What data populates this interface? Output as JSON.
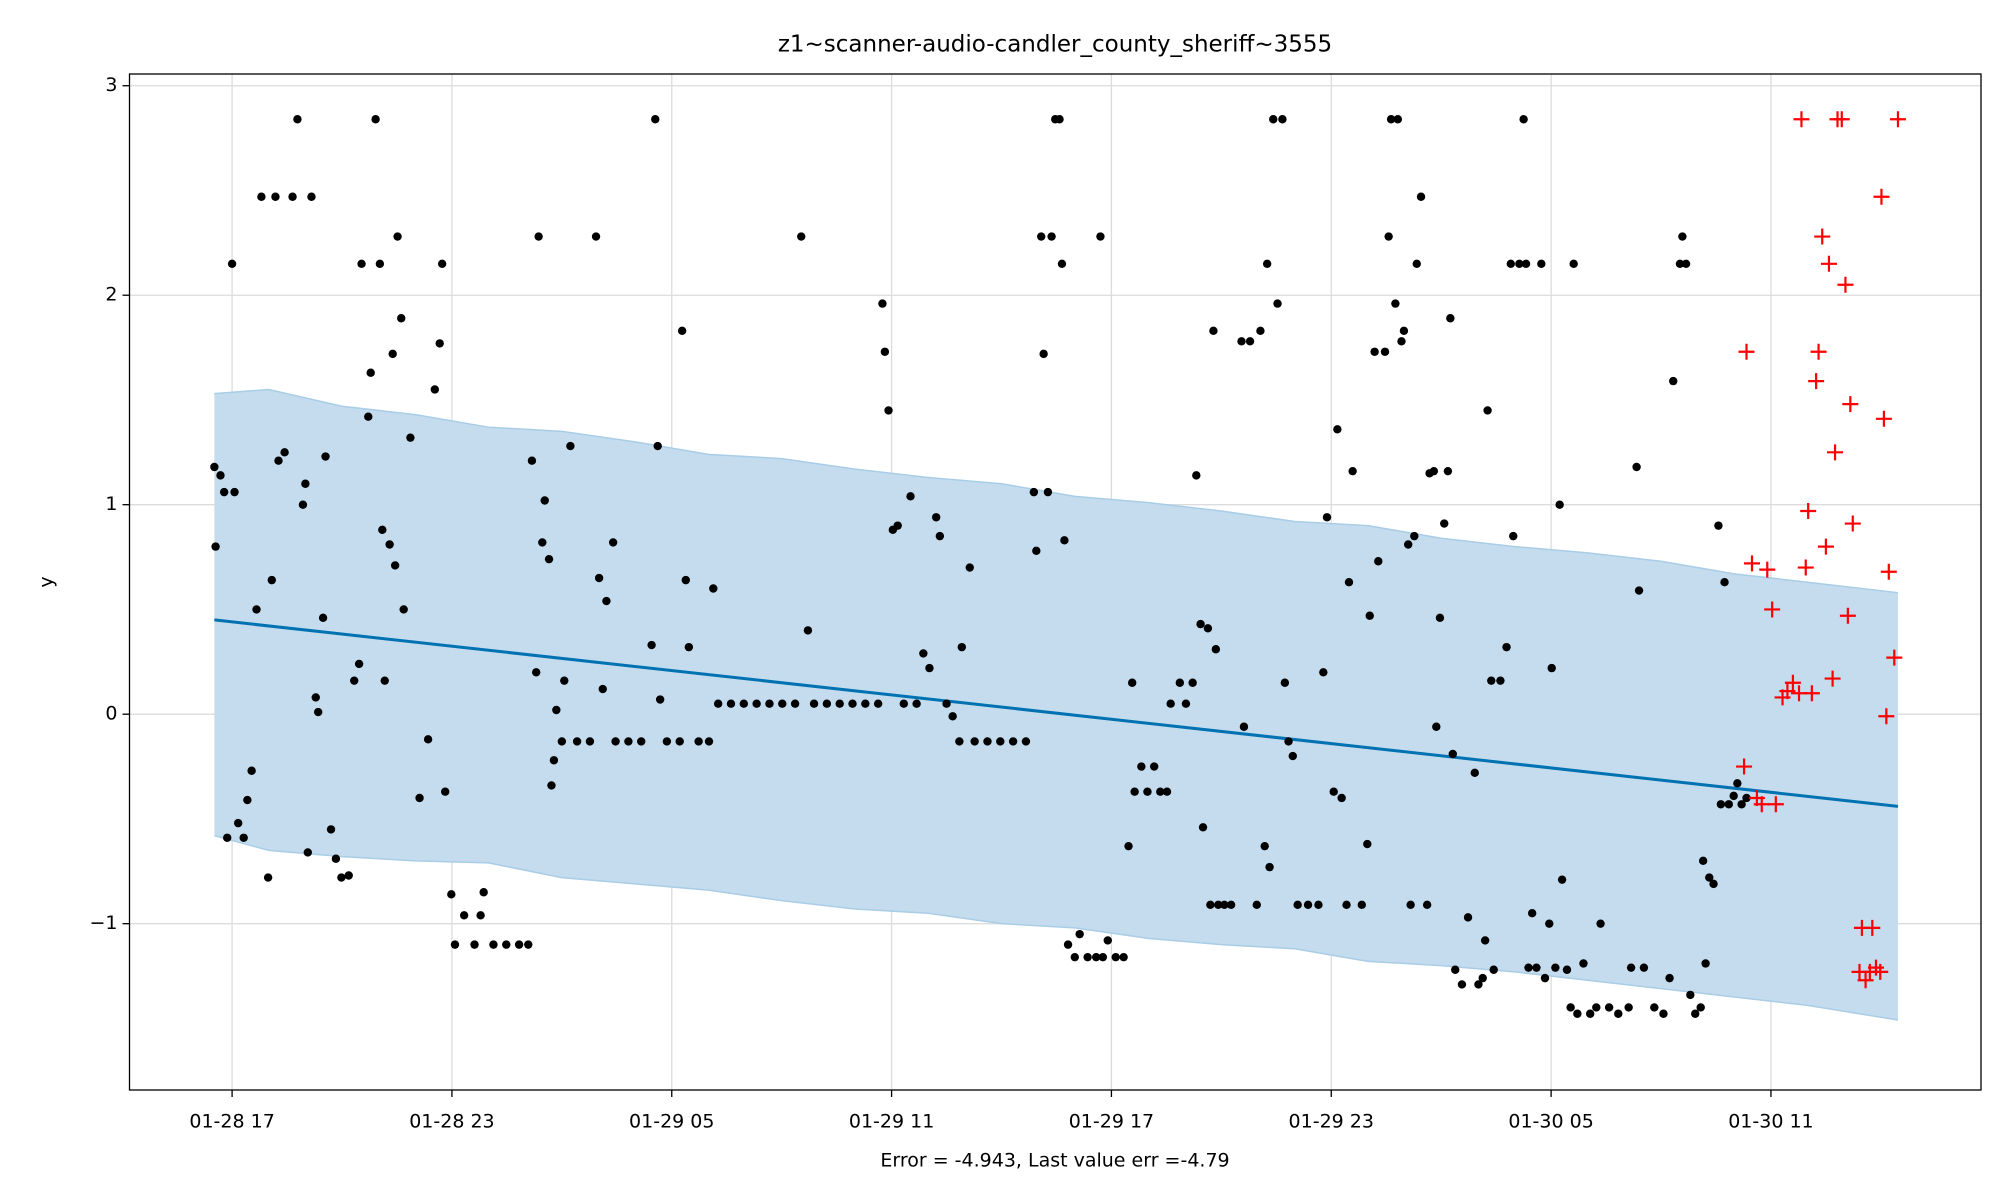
{
  "chart_data": {
    "type": "scatter",
    "title": "z1~scanner-audio-candler_county_sheriff~3555",
    "ylabel": "y",
    "xlabel": "Error = -4.943, Last value err =-4.79",
    "xlim": [
      "01-28 14:12",
      "01-30 16:44"
    ],
    "xticks": [
      "01-28 17",
      "01-28 23",
      "01-29 05",
      "01-29 11",
      "01-29 17",
      "01-29 23",
      "01-30 05",
      "01-30 11"
    ],
    "ylim": [
      -1.794,
      3.056
    ],
    "yticks": [
      {
        "value": -1,
        "label": "−1"
      },
      0,
      1,
      2,
      3
    ],
    "grid": true,
    "series": [
      {
        "type": "band",
        "color": "#c4dcee",
        "edge_color": "#a9cde6",
        "x": [
          "01-28 16:31",
          "01-28 18:00",
          "01-28 20:00",
          "01-28 22:00",
          "01-29 00:00",
          "01-29 02:00",
          "01-29 04:00",
          "01-29 06:00",
          "01-29 08:00",
          "01-29 10:00",
          "01-29 12:00",
          "01-29 14:00",
          "01-29 16:00",
          "01-29 18:00",
          "01-29 20:00",
          "01-29 22:00",
          "01-30 00:00",
          "01-30 02:00",
          "01-30 04:00",
          "01-30 06:00",
          "01-30 08:00",
          "01-30 10:00",
          "01-30 12:00",
          "01-30 14:28"
        ],
        "upper": [
          1.53,
          1.55,
          1.47,
          1.43,
          1.37,
          1.35,
          1.3,
          1.24,
          1.22,
          1.17,
          1.13,
          1.1,
          1.04,
          1.01,
          0.97,
          0.92,
          0.9,
          0.84,
          0.8,
          0.77,
          0.73,
          0.67,
          0.63,
          0.58
        ],
        "lower": [
          -0.58,
          -0.65,
          -0.68,
          -0.7,
          -0.71,
          -0.78,
          -0.81,
          -0.84,
          -0.89,
          -0.93,
          -0.95,
          -1.0,
          -1.02,
          -1.07,
          -1.1,
          -1.12,
          -1.18,
          -1.2,
          -1.23,
          -1.27,
          -1.31,
          -1.35,
          -1.39,
          -1.46
        ]
      },
      {
        "type": "line",
        "color": "#0072b2",
        "x": [
          "01-28 16:31",
          "01-30 14:28"
        ],
        "values": [
          0.45,
          -0.44
        ]
      },
      {
        "type": "scatter",
        "marker": "dot",
        "color": "#000000",
        "x": [
          "01-28 16:31",
          "01-28 16:33",
          "01-28 16:41",
          "01-28 16:47",
          "01-28 16:52",
          "01-28 17:00",
          "01-28 17:04",
          "01-28 17:10",
          "01-28 17:19",
          "01-28 17:25",
          "01-28 17:32",
          "01-28 17:40",
          "01-28 17:48",
          "01-28 17:59",
          "01-28 18:05",
          "01-28 18:11",
          "01-28 18:16",
          "01-28 18:26",
          "01-28 18:39",
          "01-28 18:47",
          "01-28 18:56",
          "01-28 19:00",
          "01-28 19:04",
          "01-28 19:10",
          "01-28 19:17",
          "01-28 19:21",
          "01-28 19:29",
          "01-28 19:33",
          "01-28 19:42",
          "01-28 19:50",
          "01-28 19:59",
          "01-28 20:11",
          "01-28 20:20",
          "01-28 20:28",
          "01-28 20:32",
          "01-28 20:43",
          "01-28 20:47",
          "01-28 20:55",
          "01-28 21:02",
          "01-28 21:06",
          "01-28 21:10",
          "01-28 21:18",
          "01-28 21:23",
          "01-28 21:27",
          "01-28 21:31",
          "01-28 21:37",
          "01-28 21:41",
          "01-28 21:52",
          "01-28 22:07",
          "01-28 22:21",
          "01-28 22:32",
          "01-28 22:40",
          "01-28 22:44",
          "01-28 22:49",
          "01-28 22:59",
          "01-28 23:05",
          "01-28 23:20",
          "01-28 23:37",
          "01-28 23:47",
          "01-28 23:52",
          "01-29 00:08",
          "01-29 00:29",
          "01-29 00:50",
          "01-29 01:05",
          "01-29 01:11",
          "01-29 01:18",
          "01-29 01:22",
          "01-29 01:28",
          "01-29 01:32",
          "01-29 01:39",
          "01-29 01:43",
          "01-29 01:47",
          "01-29 01:51",
          "01-29 02:00",
          "01-29 02:04",
          "01-29 02:14",
          "01-29 02:25",
          "01-29 02:46",
          "01-29 02:56",
          "01-29 03:01",
          "01-29 03:07",
          "01-29 03:13",
          "01-29 03:24",
          "01-29 03:28",
          "01-29 03:49",
          "01-29 04:10",
          "01-29 04:27",
          "01-29 04:33",
          "01-29 04:37",
          "01-29 04:41",
          "01-29 04:52",
          "01-29 05:13",
          "01-29 05:17",
          "01-29 05:23",
          "01-29 05:28",
          "01-29 05:44",
          "01-29 06:01",
          "01-29 06:08",
          "01-29 06:16",
          "01-29 06:37",
          "01-29 06:58",
          "01-29 07:19",
          "01-29 07:40",
          "01-29 08:01",
          "01-29 08:22",
          "01-29 08:32",
          "01-29 08:43",
          "01-29 08:53",
          "01-29 09:14",
          "01-29 09:35",
          "01-29 09:56",
          "01-29 10:17",
          "01-29 10:38",
          "01-29 10:45",
          "01-29 10:49",
          "01-29 10:55",
          "01-29 11:02",
          "01-29 11:10",
          "01-29 11:20",
          "01-29 11:31",
          "01-29 11:41",
          "01-29 11:52",
          "01-29 12:02",
          "01-29 12:13",
          "01-29 12:19",
          "01-29 12:30",
          "01-29 12:40",
          "01-29 12:51",
          "01-29 12:55",
          "01-29 13:08",
          "01-29 13:16",
          "01-29 13:37",
          "01-29 13:58",
          "01-29 14:19",
          "01-29 14:40",
          "01-29 14:53",
          "01-29 14:57",
          "01-29 15:05",
          "01-29 15:09",
          "01-29 15:16",
          "01-29 15:22",
          "01-29 15:28",
          "01-29 15:35",
          "01-29 15:39",
          "01-29 15:43",
          "01-29 15:49",
          "01-29 16:00",
          "01-29 16:08",
          "01-29 16:21",
          "01-29 16:35",
          "01-29 16:42",
          "01-29 16:46",
          "01-29 16:54",
          "01-29 17:07",
          "01-29 17:20",
          "01-29 17:28",
          "01-29 17:34",
          "01-29 17:38",
          "01-29 17:49",
          "01-29 17:59",
          "01-29 18:10",
          "01-29 18:20",
          "01-29 18:31",
          "01-29 18:37",
          "01-29 18:52",
          "01-29 19:02",
          "01-29 19:13",
          "01-29 19:19",
          "01-29 19:26",
          "01-29 19:30",
          "01-29 19:38",
          "01-29 19:42",
          "01-29 19:47",
          "01-29 19:51",
          "01-29 19:55",
          "01-29 20:05",
          "01-29 20:16",
          "01-29 20:33",
          "01-29 20:37",
          "01-29 20:47",
          "01-29 20:58",
          "01-29 21:04",
          "01-29 21:11",
          "01-29 21:15",
          "01-29 21:19",
          "01-29 21:25",
          "01-29 21:32",
          "01-29 21:40",
          "01-29 21:44",
          "01-29 21:50",
          "01-29 21:57",
          "01-29 22:05",
          "01-29 22:22",
          "01-29 22:39",
          "01-29 22:47",
          "01-29 22:53",
          "01-29 23:04",
          "01-29 23:10",
          "01-29 23:17",
          "01-29 23:25",
          "01-29 23:29",
          "01-29 23:35",
          "01-29 23:50",
          "01-29 23:59",
          "01-30 00:03",
          "01-30 00:11",
          "01-30 00:17",
          "01-30 00:28",
          "01-30 00:34",
          "01-30 00:38",
          "01-30 00:45",
          "01-30 00:49",
          "01-30 00:55",
          "01-30 00:59",
          "01-30 01:06",
          "01-30 01:10",
          "01-30 01:16",
          "01-30 01:20",
          "01-30 01:27",
          "01-30 01:37",
          "01-30 01:41",
          "01-30 01:48",
          "01-30 01:52",
          "01-30 01:58",
          "01-30 02:05",
          "01-30 02:11",
          "01-30 02:15",
          "01-30 02:19",
          "01-30 02:23",
          "01-30 02:34",
          "01-30 02:44",
          "01-30 02:55",
          "01-30 03:01",
          "01-30 03:08",
          "01-30 03:12",
          "01-30 03:16",
          "01-30 03:22",
          "01-30 03:26",
          "01-30 03:37",
          "01-30 03:47",
          "01-30 03:54",
          "01-30 03:58",
          "01-30 04:08",
          "01-30 04:15",
          "01-30 04:19",
          "01-30 04:23",
          "01-30 04:29",
          "01-30 04:36",
          "01-30 04:44",
          "01-30 04:50",
          "01-30 04:57",
          "01-30 05:01",
          "01-30 05:07",
          "01-30 05:14",
          "01-30 05:18",
          "01-30 05:26",
          "01-30 05:32",
          "01-30 05:37",
          "01-30 05:43",
          "01-30 05:53",
          "01-30 06:04",
          "01-30 06:14",
          "01-30 06:21",
          "01-30 06:35",
          "01-30 06:50",
          "01-30 07:07",
          "01-30 07:11",
          "01-30 07:20",
          "01-30 07:24",
          "01-30 07:32",
          "01-30 07:49",
          "01-30 08:04",
          "01-30 08:14",
          "01-30 08:20",
          "01-30 08:31",
          "01-30 08:35",
          "01-30 08:41",
          "01-30 08:48",
          "01-30 08:56",
          "01-30 09:05",
          "01-30 09:09",
          "01-30 09:13",
          "01-30 09:19",
          "01-30 09:26",
          "01-30 09:34",
          "01-30 09:38",
          "01-30 09:44",
          "01-30 09:51",
          "01-30 09:59",
          "01-30 10:05",
          "01-30 10:12",
          "01-30 10:20"
        ],
        "values": [
          1.18,
          0.8,
          1.14,
          1.06,
          -0.59,
          2.15,
          1.06,
          -0.52,
          -0.59,
          -0.41,
          -0.27,
          0.5,
          2.47,
          -0.78,
          0.64,
          2.47,
          1.21,
          1.25,
          2.47,
          2.84,
          1.0,
          1.1,
          -0.66,
          2.47,
          0.08,
          0.01,
          0.46,
          1.23,
          -0.55,
          -0.69,
          -0.78,
          -0.77,
          0.16,
          0.24,
          2.15,
          1.42,
          1.63,
          2.84,
          2.15,
          0.88,
          0.16,
          0.81,
          1.72,
          0.71,
          2.28,
          1.89,
          0.5,
          1.32,
          -0.4,
          -0.12,
          1.55,
          1.77,
          2.15,
          -0.37,
          -0.86,
          -1.1,
          -0.96,
          -1.1,
          -0.96,
          -0.85,
          -1.1,
          -1.1,
          -1.1,
          -1.1,
          1.21,
          0.2,
          2.28,
          0.82,
          1.02,
          0.74,
          -0.34,
          -0.22,
          0.02,
          -0.13,
          0.16,
          1.28,
          -0.13,
          -0.13,
          2.28,
          0.65,
          0.12,
          0.54,
          0.82,
          -0.13,
          -0.13,
          -0.13,
          0.33,
          2.84,
          1.28,
          0.07,
          -0.13,
          -0.13,
          1.83,
          0.64,
          0.32,
          -0.13,
          -0.13,
          0.6,
          0.05,
          0.05,
          0.05,
          0.05,
          0.05,
          0.05,
          0.05,
          2.28,
          0.4,
          0.05,
          0.05,
          0.05,
          0.05,
          0.05,
          0.05,
          1.96,
          1.73,
          1.45,
          0.88,
          0.9,
          0.05,
          1.04,
          0.05,
          0.29,
          0.22,
          0.94,
          0.85,
          0.05,
          -0.01,
          -0.13,
          0.32,
          0.7,
          -0.13,
          -0.13,
          -0.13,
          -0.13,
          -0.13,
          1.06,
          0.78,
          2.28,
          1.72,
          1.06,
          2.28,
          2.84,
          2.84,
          2.15,
          0.83,
          -1.1,
          -1.16,
          -1.05,
          -1.16,
          -1.16,
          2.28,
          -1.16,
          -1.08,
          -1.16,
          -1.16,
          -0.63,
          0.15,
          -0.37,
          -0.25,
          -0.37,
          -0.25,
          -0.37,
          -0.37,
          0.05,
          0.15,
          0.05,
          0.15,
          1.14,
          0.43,
          -0.54,
          0.41,
          -0.91,
          1.83,
          0.31,
          -0.91,
          -0.91,
          -0.91,
          1.78,
          -0.06,
          1.78,
          -0.91,
          1.83,
          -0.63,
          2.15,
          -0.73,
          2.84,
          1.96,
          2.84,
          0.15,
          -0.13,
          -0.2,
          -0.91,
          -0.91,
          -0.91,
          0.2,
          0.94,
          -0.37,
          1.36,
          -0.4,
          -0.91,
          0.63,
          1.16,
          -0.91,
          -0.62,
          0.47,
          1.73,
          0.73,
          1.73,
          2.28,
          2.84,
          1.96,
          2.84,
          1.78,
          1.83,
          0.81,
          -0.91,
          0.85,
          2.15,
          2.47,
          -0.91,
          1.15,
          1.16,
          -0.06,
          0.46,
          0.91,
          1.16,
          1.89,
          -0.19,
          -1.22,
          -1.29,
          -0.97,
          -0.28,
          -1.29,
          -1.26,
          -1.08,
          1.45,
          0.16,
          -1.22,
          0.16,
          0.32,
          2.15,
          0.85,
          2.15,
          2.84,
          2.15,
          -1.21,
          -0.95,
          -1.21,
          2.15,
          -1.26,
          -1.0,
          0.22,
          -1.21,
          1.0,
          -0.79,
          -1.22,
          -1.4,
          2.15,
          -1.43,
          -1.19,
          -1.43,
          -1.4,
          -1.0,
          -1.4,
          -1.43,
          -1.4,
          -1.21,
          1.18,
          0.59,
          -1.21,
          -1.4,
          -1.43,
          -1.26,
          1.59,
          2.15,
          2.28,
          2.15,
          -1.34,
          -1.43,
          -1.4,
          -0.7,
          -1.19,
          -0.78,
          -0.81,
          0.9,
          -0.43,
          0.63,
          -0.43,
          -0.39,
          -0.33,
          -0.43,
          -0.4
        ]
      },
      {
        "type": "scatter",
        "marker": "plus",
        "color": "#ff0000",
        "x": [
          "01-30 10:20",
          "01-30 10:16",
          "01-30 10:29",
          "01-30 10:37",
          "01-30 10:45",
          "01-30 10:54",
          "01-30 11:02",
          "01-30 11:08",
          "01-30 11:19",
          "01-30 11:27",
          "01-30 11:36",
          "01-30 11:46",
          "01-30 11:50",
          "01-30 11:57",
          "01-30 12:01",
          "01-30 12:07",
          "01-30 12:14",
          "01-30 12:18",
          "01-30 12:24",
          "01-30 12:30",
          "01-30 12:35",
          "01-30 12:41",
          "01-30 12:45",
          "01-30 12:49",
          "01-30 12:56",
          "01-30 13:02",
          "01-30 13:06",
          "01-30 13:10",
          "01-30 13:14",
          "01-30 13:25",
          "01-30 13:29",
          "01-30 13:35",
          "01-30 13:42",
          "01-30 13:46",
          "01-30 13:52",
          "01-30 13:59",
          "01-30 14:01",
          "01-30 14:05",
          "01-30 14:09",
          "01-30 14:13",
          "01-30 14:22",
          "01-30 14:28"
        ],
        "values": [
          1.73,
          -0.25,
          0.72,
          -0.4,
          -0.43,
          0.69,
          0.5,
          -0.43,
          0.08,
          0.11,
          0.15,
          0.1,
          2.84,
          0.7,
          0.97,
          0.1,
          1.59,
          1.73,
          2.28,
          0.8,
          2.15,
          0.17,
          1.25,
          2.84,
          2.84,
          2.05,
          0.47,
          1.48,
          0.91,
          -1.23,
          -1.02,
          -1.27,
          -1.23,
          -1.02,
          -1.21,
          -1.23,
          2.47,
          1.41,
          -0.01,
          0.68,
          0.27,
          2.84
        ]
      }
    ]
  }
}
